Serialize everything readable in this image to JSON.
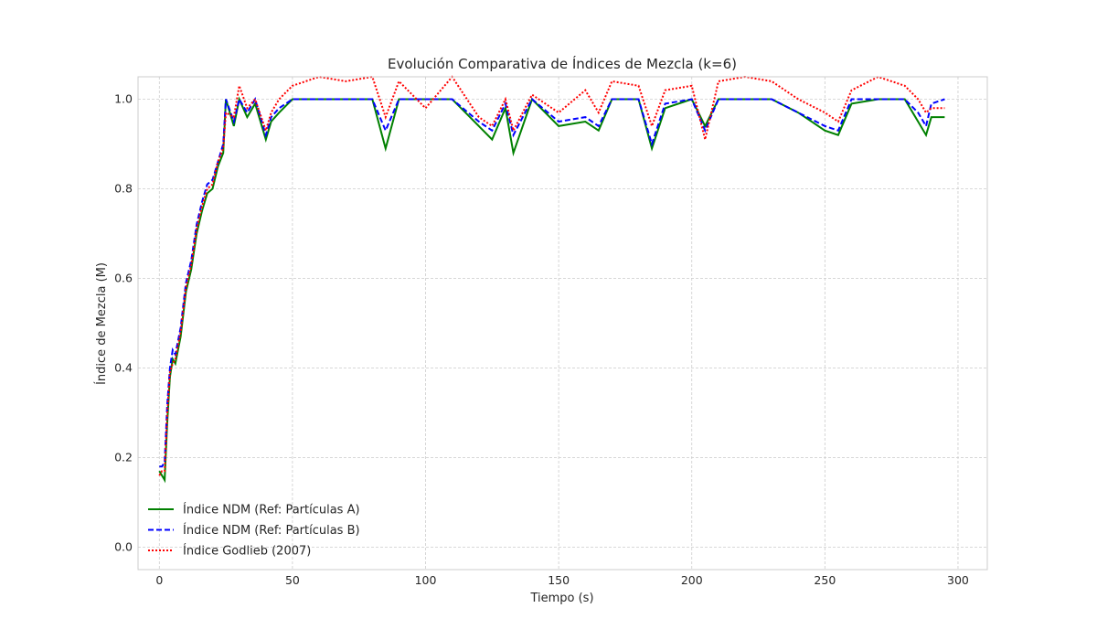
{
  "chart_data": {
    "type": "line",
    "title": "Evolución Comparativa de Índices de Mezcla (k=6)",
    "xlabel": "Tiempo (s)",
    "ylabel": "Índice de Mezcla (M)",
    "xlim": [
      -8,
      311
    ],
    "ylim": [
      -0.05,
      1.05
    ],
    "xticks": [
      0,
      50,
      100,
      150,
      200,
      250,
      300
    ],
    "yticks": [
      0.0,
      0.2,
      0.4,
      0.6,
      0.8,
      1.0
    ],
    "xtick_labels": [
      "0",
      "50",
      "100",
      "150",
      "200",
      "250",
      "300"
    ],
    "ytick_labels": [
      "0.0",
      "0.2",
      "0.4",
      "0.6",
      "0.8",
      "1.0"
    ],
    "grid": true,
    "legend_position": "lower-left",
    "series": [
      {
        "name": "Índice NDM (Ref: Partículas A)",
        "color": "#008000",
        "dash": "solid",
        "x": [
          0,
          1,
          2,
          3,
          4,
          5,
          6,
          8,
          10,
          12,
          14,
          16,
          18,
          20,
          22,
          24,
          25,
          28,
          30,
          33,
          36,
          40,
          42,
          45,
          50,
          60,
          70,
          80,
          85,
          90,
          100,
          110,
          120,
          125,
          130,
          133,
          140,
          150,
          160,
          165,
          170,
          180,
          185,
          190,
          200,
          205,
          210,
          220,
          230,
          240,
          250,
          255,
          260,
          270,
          280,
          285,
          288,
          290,
          295
        ],
        "y": [
          0.17,
          0.16,
          0.15,
          0.28,
          0.38,
          0.42,
          0.41,
          0.47,
          0.57,
          0.62,
          0.7,
          0.75,
          0.79,
          0.8,
          0.85,
          0.88,
          1.0,
          0.94,
          1.0,
          0.96,
          0.99,
          0.91,
          0.95,
          0.97,
          1.0,
          1.0,
          1.0,
          1.0,
          0.89,
          1.0,
          1.0,
          1.0,
          0.94,
          0.91,
          0.98,
          0.88,
          1.0,
          0.94,
          0.95,
          0.93,
          1.0,
          1.0,
          0.89,
          0.98,
          1.0,
          0.94,
          1.0,
          1.0,
          1.0,
          0.97,
          0.93,
          0.92,
          0.99,
          1.0,
          1.0,
          0.95,
          0.92,
          0.96,
          0.96
        ]
      },
      {
        "name": "Índice NDM (Ref: Partículas B)",
        "color": "#0000ff",
        "dash": "dashed",
        "x": [
          0,
          1,
          2,
          3,
          4,
          5,
          6,
          8,
          10,
          12,
          14,
          16,
          18,
          20,
          22,
          24,
          25,
          28,
          30,
          33,
          36,
          40,
          42,
          45,
          50,
          60,
          70,
          80,
          85,
          90,
          100,
          110,
          120,
          125,
          130,
          133,
          140,
          150,
          160,
          165,
          170,
          180,
          185,
          190,
          200,
          205,
          210,
          220,
          230,
          240,
          250,
          255,
          260,
          270,
          280,
          285,
          288,
          290,
          295
        ],
        "y": [
          0.18,
          0.18,
          0.19,
          0.32,
          0.4,
          0.44,
          0.43,
          0.49,
          0.59,
          0.64,
          0.72,
          0.77,
          0.81,
          0.82,
          0.86,
          0.9,
          1.0,
          0.95,
          1.0,
          0.97,
          1.0,
          0.92,
          0.96,
          0.98,
          1.0,
          1.0,
          1.0,
          1.0,
          0.93,
          1.0,
          1.0,
          1.0,
          0.95,
          0.93,
          0.99,
          0.92,
          1.0,
          0.95,
          0.96,
          0.94,
          1.0,
          1.0,
          0.9,
          0.99,
          1.0,
          0.93,
          1.0,
          1.0,
          1.0,
          0.97,
          0.94,
          0.93,
          1.0,
          1.0,
          1.0,
          0.97,
          0.94,
          0.99,
          1.0
        ]
      },
      {
        "name": "Índice Godlieb (2007)",
        "color": "#ff0000",
        "dash": "dotted",
        "x": [
          0,
          1,
          2,
          3,
          4,
          5,
          6,
          8,
          10,
          12,
          14,
          16,
          18,
          20,
          22,
          24,
          25,
          28,
          30,
          33,
          36,
          40,
          42,
          45,
          50,
          55,
          60,
          70,
          80,
          85,
          90,
          100,
          110,
          120,
          125,
          130,
          133,
          140,
          150,
          160,
          165,
          170,
          180,
          185,
          190,
          200,
          205,
          210,
          220,
          230,
          240,
          250,
          255,
          260,
          270,
          280,
          285,
          288,
          290,
          295
        ],
        "y": [
          0.16,
          0.17,
          0.17,
          0.3,
          0.39,
          0.41,
          0.42,
          0.48,
          0.58,
          0.63,
          0.71,
          0.76,
          0.8,
          0.81,
          0.86,
          0.89,
          0.97,
          0.96,
          1.03,
          0.98,
          1.0,
          0.93,
          0.97,
          1.0,
          1.03,
          1.04,
          1.05,
          1.04,
          1.05,
          0.96,
          1.04,
          0.98,
          1.05,
          0.96,
          0.94,
          1.0,
          0.93,
          1.01,
          0.97,
          1.02,
          0.97,
          1.04,
          1.03,
          0.94,
          1.02,
          1.03,
          0.91,
          1.04,
          1.05,
          1.04,
          1.0,
          0.97,
          0.95,
          1.02,
          1.05,
          1.03,
          1.0,
          0.97,
          0.98,
          0.98
        ]
      }
    ]
  }
}
